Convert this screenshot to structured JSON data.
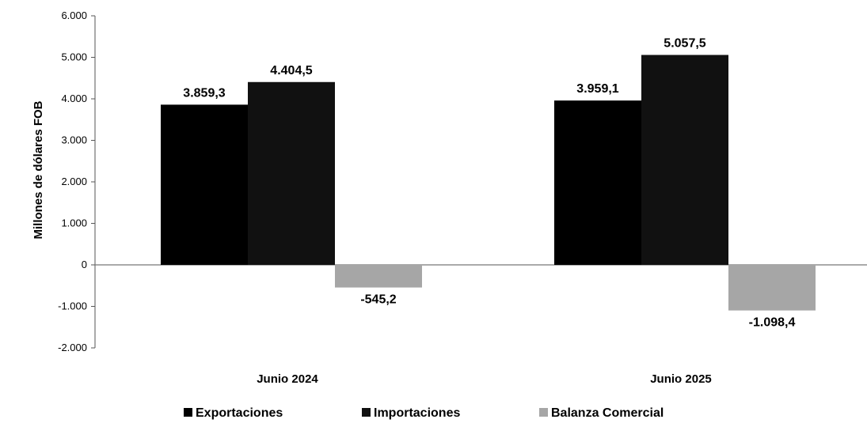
{
  "chart_data": {
    "type": "bar",
    "title": "",
    "ylabel": "Millones de dólares FOB",
    "xlabel": "",
    "categories": [
      "Junio 2024",
      "Junio 2025"
    ],
    "series": [
      {
        "name": "Exportaciones",
        "values": [
          3859.3,
          3959.1
        ],
        "labels": [
          "3.859,3",
          "3.959,1"
        ],
        "color": "#000000"
      },
      {
        "name": "Importaciones",
        "values": [
          4404.5,
          5057.5
        ],
        "labels": [
          "4.404,5",
          "5.057,5"
        ],
        "color": "#111111"
      },
      {
        "name": "Balanza Comercial",
        "values": [
          -545.2,
          -1098.4
        ],
        "labels": [
          "-545,2",
          "-1.098,4"
        ],
        "color": "#a6a6a6"
      }
    ],
    "ylim": [
      -2000,
      6000
    ],
    "yticks": [
      6000,
      5000,
      4000,
      3000,
      2000,
      1000,
      0,
      -1000,
      -2000
    ],
    "ytick_labels": [
      "6.000",
      "5.000",
      "4.000",
      "3.000",
      "2.000",
      "1.000",
      "0",
      "-1.000",
      "-2.000"
    ],
    "grid": false,
    "legend": "bottom"
  }
}
